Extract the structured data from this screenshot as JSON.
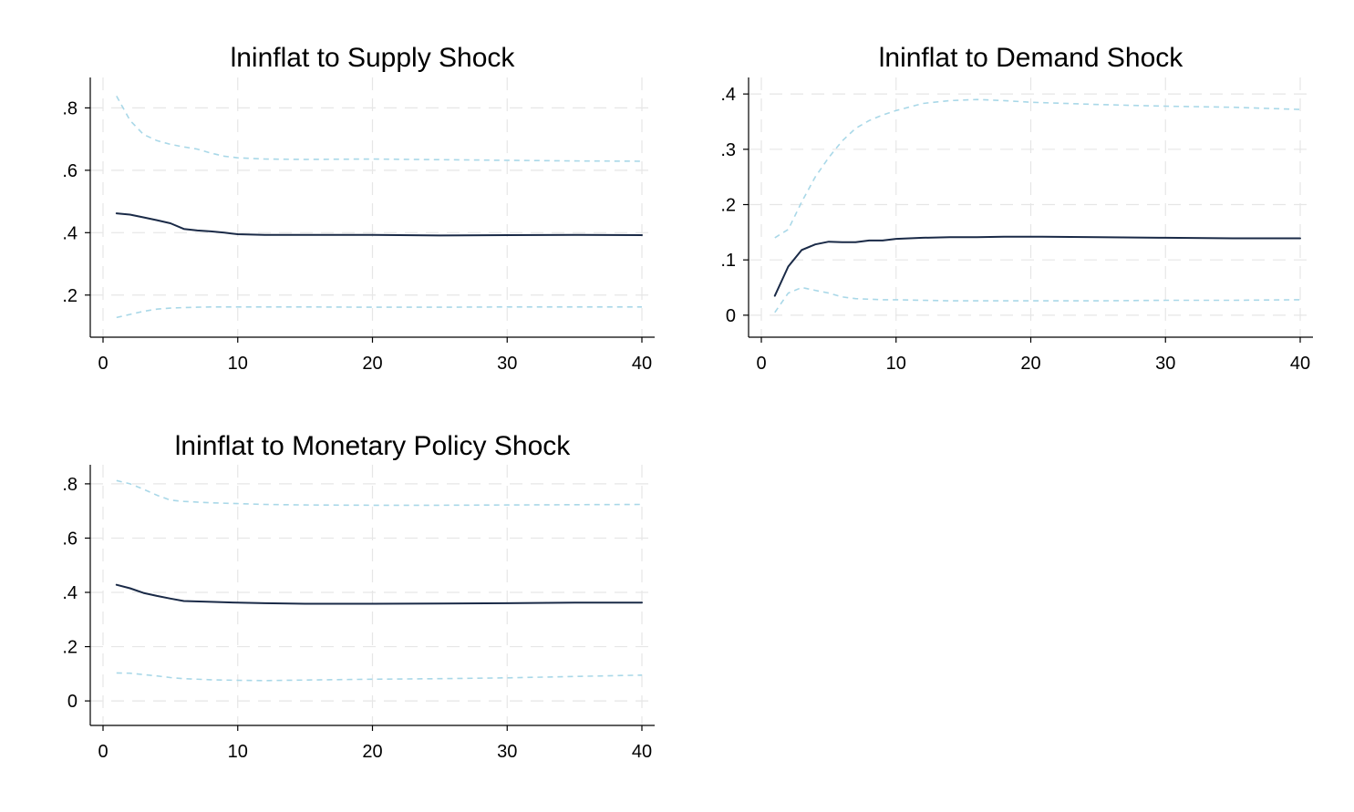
{
  "figure": {
    "colors": {
      "irf": "#1a2a47",
      "ci": "#a9d8e8",
      "grid": "#e6e6e6",
      "axis": "#000000"
    }
  },
  "chart_data": [
    {
      "type": "line",
      "title": "lninflat to Supply Shock",
      "xlabel": "",
      "ylabel": "",
      "xlim": [
        0,
        40
      ],
      "ylim": [
        0.1,
        0.88
      ],
      "xticks": [
        0,
        10,
        20,
        30,
        40
      ],
      "xtick_labels": [
        "0",
        "10",
        "20",
        "30",
        "40"
      ],
      "yticks": [
        0.2,
        0.4,
        0.6,
        0.8
      ],
      "ytick_labels": [
        ".2",
        ".4",
        ".6",
        ".8"
      ],
      "grid": true,
      "x": [
        1,
        2,
        3,
        4,
        5,
        6,
        7,
        8,
        9,
        10,
        12,
        15,
        20,
        25,
        30,
        35,
        40
      ],
      "series": [
        {
          "role": "irf",
          "values": [
            0.462,
            0.458,
            0.449,
            0.44,
            0.43,
            0.412,
            0.407,
            0.404,
            0.4,
            0.395,
            0.393,
            0.393,
            0.393,
            0.391,
            0.392,
            0.393,
            0.392
          ]
        },
        {
          "role": "ci-upper",
          "values": [
            0.838,
            0.76,
            0.715,
            0.695,
            0.683,
            0.675,
            0.668,
            0.655,
            0.645,
            0.64,
            0.636,
            0.635,
            0.636,
            0.634,
            0.632,
            0.63,
            0.629
          ]
        },
        {
          "role": "ci-lower",
          "values": [
            0.128,
            0.138,
            0.148,
            0.155,
            0.158,
            0.16,
            0.161,
            0.162,
            0.162,
            0.162,
            0.162,
            0.162,
            0.161,
            0.161,
            0.162,
            0.162,
            0.162
          ]
        }
      ]
    },
    {
      "type": "line",
      "title": "lninflat to Demand Shock",
      "xlabel": "",
      "ylabel": "",
      "xlim": [
        0,
        40
      ],
      "ylim": [
        -0.02,
        0.42
      ],
      "xticks": [
        0,
        10,
        20,
        30,
        40
      ],
      "xtick_labels": [
        "0",
        "10",
        "20",
        "30",
        "40"
      ],
      "yticks": [
        0,
        0.1,
        0.2,
        0.3,
        0.4
      ],
      "ytick_labels": [
        "0",
        ".1",
        ".2",
        ".3",
        ".4"
      ],
      "grid": true,
      "x": [
        1,
        2,
        3,
        4,
        5,
        6,
        7,
        8,
        9,
        10,
        12,
        14,
        16,
        18,
        20,
        25,
        30,
        35,
        40
      ],
      "series": [
        {
          "role": "irf",
          "values": [
            0.035,
            0.088,
            0.118,
            0.128,
            0.133,
            0.132,
            0.132,
            0.135,
            0.135,
            0.138,
            0.14,
            0.141,
            0.141,
            0.142,
            0.142,
            0.141,
            0.14,
            0.139,
            0.139
          ]
        },
        {
          "role": "ci-upper",
          "values": [
            0.14,
            0.155,
            0.205,
            0.25,
            0.285,
            0.315,
            0.338,
            0.352,
            0.362,
            0.37,
            0.383,
            0.388,
            0.39,
            0.388,
            0.385,
            0.381,
            0.378,
            0.376,
            0.372
          ]
        },
        {
          "role": "ci-lower",
          "values": [
            0.005,
            0.04,
            0.05,
            0.045,
            0.04,
            0.033,
            0.03,
            0.029,
            0.028,
            0.028,
            0.027,
            0.026,
            0.026,
            0.026,
            0.026,
            0.026,
            0.027,
            0.027,
            0.028
          ]
        }
      ]
    },
    {
      "type": "line",
      "title": "lninflat to Monetary Policy Shock",
      "xlabel": "",
      "ylabel": "",
      "xlim": [
        0,
        40
      ],
      "ylim": [
        -0.05,
        0.85
      ],
      "xticks": [
        0,
        10,
        20,
        30,
        40
      ],
      "xtick_labels": [
        "0",
        "10",
        "20",
        "30",
        "40"
      ],
      "yticks": [
        0,
        0.2,
        0.4,
        0.6,
        0.8
      ],
      "ytick_labels": [
        "0",
        ".2",
        ".4",
        ".6",
        ".8"
      ],
      "grid": true,
      "x": [
        1,
        2,
        3,
        4,
        5,
        6,
        8,
        10,
        12,
        15,
        20,
        25,
        30,
        35,
        40
      ],
      "series": [
        {
          "role": "irf",
          "values": [
            0.428,
            0.415,
            0.398,
            0.387,
            0.377,
            0.368,
            0.365,
            0.362,
            0.36,
            0.358,
            0.358,
            0.359,
            0.36,
            0.362,
            0.362
          ]
        },
        {
          "role": "ci-upper",
          "values": [
            0.812,
            0.8,
            0.78,
            0.758,
            0.74,
            0.735,
            0.73,
            0.727,
            0.724,
            0.722,
            0.721,
            0.721,
            0.722,
            0.723,
            0.724
          ]
        },
        {
          "role": "ci-lower",
          "values": [
            0.103,
            0.102,
            0.097,
            0.092,
            0.086,
            0.082,
            0.078,
            0.076,
            0.075,
            0.077,
            0.08,
            0.082,
            0.085,
            0.09,
            0.095
          ]
        }
      ]
    }
  ]
}
